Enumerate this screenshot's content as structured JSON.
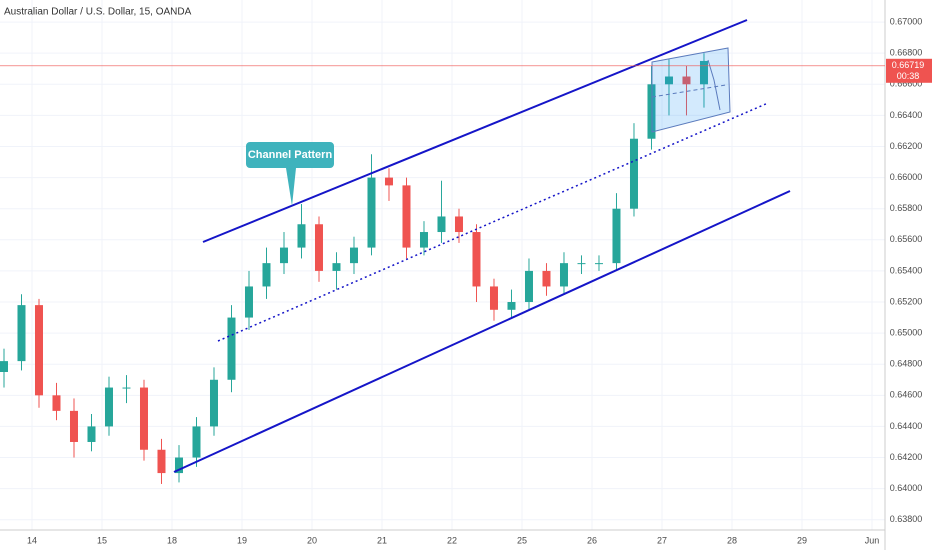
{
  "chart_data": {
    "type": "candlestick",
    "title": "Australian Dollar / U.S. Dollar, 15, OANDA",
    "annotation": "Channel Pattern",
    "last_price": 0.66719,
    "countdown": "00:38",
    "x": [
      -0.4,
      -0.15,
      0.1,
      0.35,
      0.6,
      0.85,
      1.1,
      1.35,
      1.6,
      1.85,
      2.1,
      2.35,
      2.6,
      2.85,
      3.1,
      3.35,
      3.6,
      3.85,
      4.1,
      4.35,
      4.6,
      4.85,
      5.1,
      5.35,
      5.6,
      5.85,
      6.1,
      6.35,
      6.6,
      6.85,
      7.1,
      7.35,
      7.6,
      7.85,
      8.1,
      8.35,
      8.6,
      8.85,
      9.1,
      9.35,
      9.6
    ],
    "open": [
      0.6475,
      0.6482,
      0.6518,
      0.646,
      0.645,
      0.643,
      0.644,
      0.6465,
      0.6465,
      0.6425,
      0.641,
      0.642,
      0.644,
      0.647,
      0.651,
      0.653,
      0.6545,
      0.6555,
      0.657,
      0.654,
      0.6545,
      0.6555,
      0.66,
      0.6595,
      0.6555,
      0.6565,
      0.6575,
      0.6565,
      0.653,
      0.6515,
      0.652,
      0.654,
      0.653,
      0.6545,
      0.6545,
      0.6545,
      0.658,
      0.6625,
      0.666,
      0.6665,
      0.666
    ],
    "high": [
      0.649,
      0.6525,
      0.6522,
      0.6468,
      0.6458,
      0.6448,
      0.6472,
      0.6473,
      0.647,
      0.6432,
      0.6428,
      0.6446,
      0.6478,
      0.6518,
      0.654,
      0.6555,
      0.6565,
      0.6583,
      0.6575,
      0.6552,
      0.6562,
      0.6615,
      0.6606,
      0.66,
      0.6572,
      0.6598,
      0.658,
      0.657,
      0.6535,
      0.6528,
      0.6548,
      0.6545,
      0.6552,
      0.655,
      0.655,
      0.659,
      0.6635,
      0.6672,
      0.6676,
      0.6672,
      0.668
    ],
    "low": [
      0.6465,
      0.6476,
      0.6452,
      0.6444,
      0.642,
      0.6424,
      0.6434,
      0.6455,
      0.6418,
      0.6403,
      0.6404,
      0.6414,
      0.6434,
      0.6462,
      0.6502,
      0.6522,
      0.6538,
      0.6548,
      0.6533,
      0.6528,
      0.6538,
      0.655,
      0.6585,
      0.6548,
      0.655,
      0.6558,
      0.6558,
      0.652,
      0.6508,
      0.651,
      0.6515,
      0.6524,
      0.6525,
      0.6538,
      0.654,
      0.654,
      0.6575,
      0.6618,
      0.664,
      0.664,
      0.6645
    ],
    "close": [
      0.6482,
      0.6518,
      0.646,
      0.645,
      0.643,
      0.644,
      0.6465,
      0.6465,
      0.6425,
      0.641,
      0.642,
      0.644,
      0.647,
      0.651,
      0.653,
      0.6545,
      0.6555,
      0.657,
      0.654,
      0.6545,
      0.6555,
      0.66,
      0.6595,
      0.6555,
      0.6565,
      0.6575,
      0.6565,
      0.653,
      0.6515,
      0.652,
      0.654,
      0.653,
      0.6545,
      0.6545,
      0.6545,
      0.658,
      0.6625,
      0.666,
      0.6665,
      0.666,
      0.6675
    ],
    "up_color": "#26a69a",
    "down_color": "#ef5350",
    "xlim": [
      -0.457,
      12.186
    ],
    "xticks": [
      {
        "value": 0,
        "label": "14"
      },
      {
        "value": 1,
        "label": "15"
      },
      {
        "value": 2,
        "label": "18"
      },
      {
        "value": 3,
        "label": "19"
      },
      {
        "value": 4,
        "label": "20"
      },
      {
        "value": 5,
        "label": "21"
      },
      {
        "value": 6,
        "label": "22"
      },
      {
        "value": 7,
        "label": "25"
      },
      {
        "value": 8,
        "label": "26"
      },
      {
        "value": 9,
        "label": "27"
      },
      {
        "value": 10,
        "label": "28"
      },
      {
        "value": 11,
        "label": "29"
      },
      {
        "value": 12,
        "label": "Jun"
      }
    ],
    "ylim": [
      0.63734,
      0.67142
    ],
    "yticks": [
      {
        "value": 0.638,
        "label": "0.63800"
      },
      {
        "value": 0.64,
        "label": "0.64000"
      },
      {
        "value": 0.642,
        "label": "0.64200"
      },
      {
        "value": 0.644,
        "label": "0.64400"
      },
      {
        "value": 0.646,
        "label": "0.64600"
      },
      {
        "value": 0.648,
        "label": "0.64800"
      },
      {
        "value": 0.65,
        "label": "0.65000"
      },
      {
        "value": 0.652,
        "label": "0.65200"
      },
      {
        "value": 0.654,
        "label": "0.65400"
      },
      {
        "value": 0.656,
        "label": "0.65600"
      },
      {
        "value": 0.658,
        "label": "0.65800"
      },
      {
        "value": 0.66,
        "label": "0.66000"
      },
      {
        "value": 0.662,
        "label": "0.66200"
      },
      {
        "value": 0.664,
        "label": "0.66400"
      },
      {
        "value": 0.666,
        "label": "0.66600"
      },
      {
        "value": 0.668,
        "label": "0.66800"
      },
      {
        "value": 0.67,
        "label": "0.67000"
      }
    ],
    "grid": true
  }
}
